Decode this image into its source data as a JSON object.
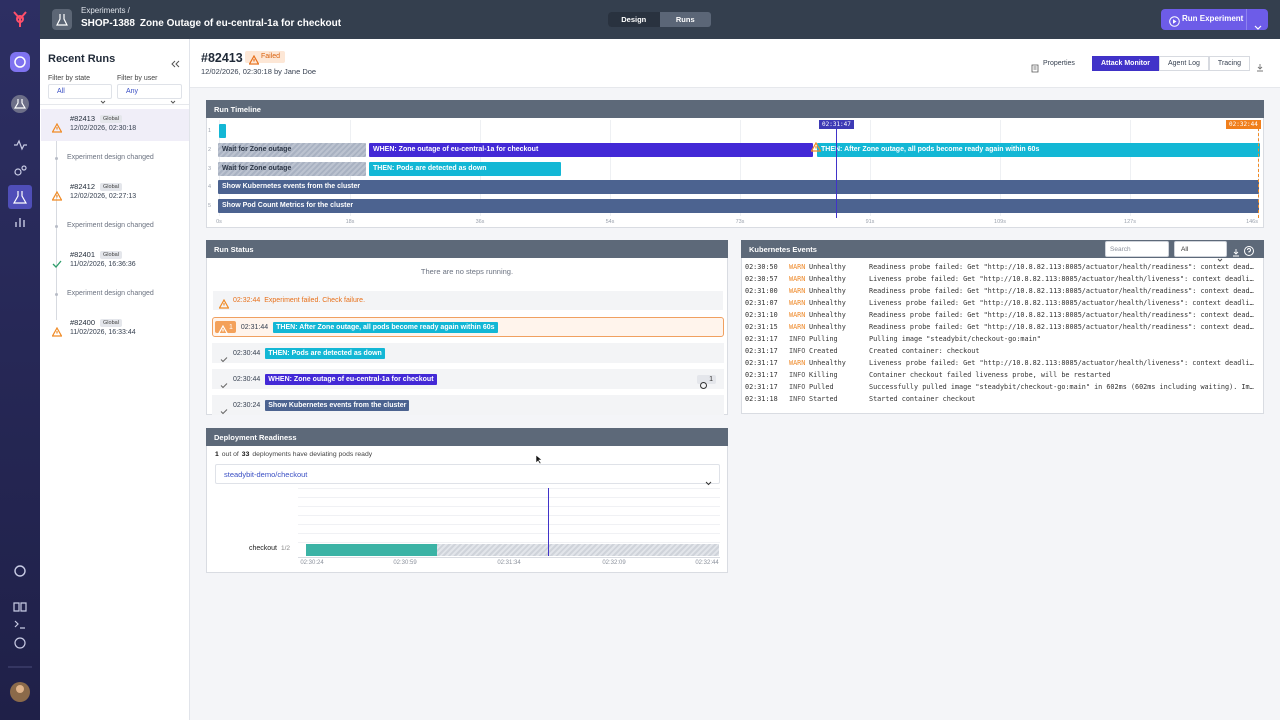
{
  "header": {
    "breadcrumb": "Experiments /",
    "key": "SHOP-1388",
    "title": "Zone Outage of eu-central-1a for checkout",
    "tabs": [
      "Design",
      "Runs"
    ],
    "run_button": "Run Experiment"
  },
  "sidebar": {
    "title": "Recent Runs",
    "filter_state_label": "Filter by state",
    "filter_state": "All",
    "filter_user_label": "Filter by user",
    "filter_user": "Any",
    "items": [
      {
        "id": "#82413",
        "scope": "Global",
        "date": "12/02/2026, 02:30:18",
        "state": "warning"
      },
      {
        "change": "Experiment design changed"
      },
      {
        "id": "#82412",
        "scope": "Global",
        "date": "12/02/2026, 02:27:13",
        "state": "warning"
      },
      {
        "change": "Experiment design changed"
      },
      {
        "id": "#82401",
        "scope": "Global",
        "date": "11/02/2026, 16:36:36",
        "state": "success"
      },
      {
        "change": "Experiment design changed"
      },
      {
        "id": "#82400",
        "scope": "Global",
        "date": "11/02/2026, 16:33:44",
        "state": "warning"
      }
    ]
  },
  "run": {
    "id": "#82413",
    "status": "Failed",
    "meta": "12/02/2026, 02:30:18 by Jane Doe",
    "properties": "Properties",
    "tabs": [
      "Attack Monitor",
      "Agent Log",
      "Tracing"
    ]
  },
  "timeline": {
    "title": "Run Timeline",
    "cursor": "02:31:47",
    "end": "02:32:44",
    "rows": [
      {
        "number": 1,
        "bars": [
          {
            "kind": "then"
          }
        ]
      },
      {
        "number": 2,
        "bars": [
          {
            "kind": "wait",
            "label": "Wait for Zone outage"
          },
          {
            "kind": "when",
            "label": "WHEN: Zone outage of eu-central-1a for checkout"
          },
          {
            "kind": "then",
            "label": "THEN: After Zone outage, all pods become ready again within 60s"
          }
        ]
      },
      {
        "number": 3,
        "bars": [
          {
            "kind": "wait",
            "label": "Wait for Zone outage"
          },
          {
            "kind": "then",
            "label": "THEN: Pods are detected as down"
          }
        ]
      },
      {
        "number": 4,
        "bars": [
          {
            "kind": "action",
            "label": "Show Kubernetes events from the cluster"
          }
        ]
      },
      {
        "number": 5,
        "bars": [
          {
            "kind": "action",
            "label": "Show Pod Count Metrics for the cluster"
          }
        ]
      }
    ],
    "axis": [
      "0s",
      "18s",
      "36s",
      "54s",
      "73s",
      "91s",
      "109s",
      "127s",
      "146s"
    ]
  },
  "run_status": {
    "title": "Run Status",
    "empty": "There are no steps running.",
    "failure_time": "02:32:44",
    "failure": "Experiment failed. Check failure.",
    "steps": [
      {
        "time": "02:31:44",
        "label": "THEN: After Zone outage, all pods become ready again within 60s",
        "kind": "then",
        "state": "failed",
        "badge": "1"
      },
      {
        "time": "02:30:44",
        "label": "THEN: Pods are detected as down",
        "kind": "then",
        "state": "done"
      },
      {
        "time": "02:30:44",
        "label": "WHEN: Zone outage of eu-central-1a for checkout",
        "kind": "when",
        "state": "done",
        "badge": "1"
      },
      {
        "time": "02:30:24",
        "label": "Show Kubernetes events from the cluster",
        "kind": "action",
        "state": "done"
      }
    ]
  },
  "events": {
    "title": "Kubernetes Events",
    "search": "Search",
    "filter": "All",
    "rows": [
      [
        "02:30:50",
        "WARN",
        "Unhealthy",
        "Readiness probe failed: Get \"http://10.8.82.113:8085/actuator/health/readiness\": context deadline exceeded"
      ],
      [
        "02:30:57",
        "WARN",
        "Unhealthy",
        "Liveness probe failed: Get \"http://10.8.82.113:8085/actuator/health/liveness\": context deadline exceeded"
      ],
      [
        "02:31:00",
        "WARN",
        "Unhealthy",
        "Readiness probe failed: Get \"http://10.8.82.113:8085/actuator/health/readiness\": context deadline exceeded"
      ],
      [
        "02:31:07",
        "WARN",
        "Unhealthy",
        "Liveness probe failed: Get \"http://10.8.82.113:8085/actuator/health/liveness\": context deadline exceeded"
      ],
      [
        "02:31:10",
        "WARN",
        "Unhealthy",
        "Readiness probe failed: Get \"http://10.8.82.113:8085/actuator/health/readiness\": context deadline exceeded"
      ],
      [
        "02:31:15",
        "WARN",
        "Unhealthy",
        "Readiness probe failed: Get \"http://10.8.82.113:8085/actuator/health/readiness\": context deadline exceeded"
      ],
      [
        "02:31:17",
        "INFO",
        "Pulling",
        "Pulling image \"steadybit/checkout-go:main\""
      ],
      [
        "02:31:17",
        "INFO",
        "Created",
        "Created container: checkout"
      ],
      [
        "02:31:17",
        "WARN",
        "Unhealthy",
        "Liveness probe failed: Get \"http://10.8.82.113:8085/actuator/health/liveness\": context deadline exceeded"
      ],
      [
        "02:31:17",
        "INFO",
        "Killing",
        "Container checkout failed liveness probe, will be restarted"
      ],
      [
        "02:31:17",
        "INFO",
        "Pulled",
        "Successfully pulled image \"steadybit/checkout-go:main\" in 602ms (602ms including waiting). Image s"
      ],
      [
        "02:31:18",
        "INFO",
        "Started",
        "Started container checkout"
      ]
    ]
  },
  "readiness": {
    "title": "Deployment Readiness",
    "count": 1,
    "out_of": "out of",
    "total": 33,
    "rest": "deployments have deviating pods ready",
    "deployment": "steadybit-demo/checkout",
    "row_label": "checkout",
    "row_ratio": "1/2",
    "axis": [
      "02:30:24",
      "02:30:59",
      "02:31:34",
      "02:32:09",
      "02:32:44"
    ]
  }
}
